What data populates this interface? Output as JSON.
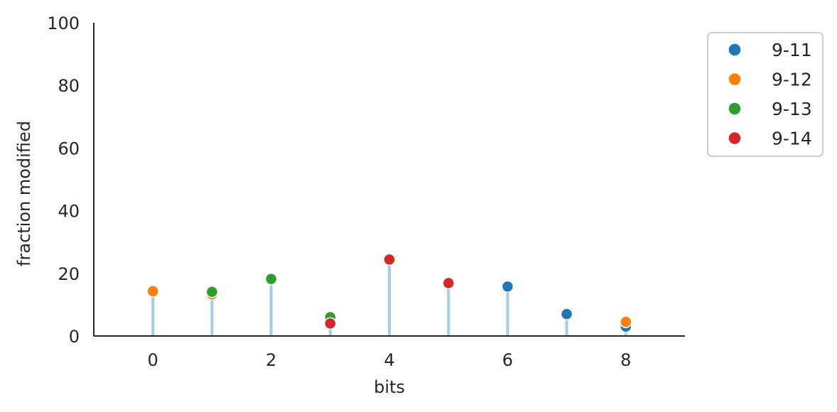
{
  "chart_data": {
    "type": "scatter",
    "title": "",
    "xlabel": "bits",
    "ylabel": "fraction modified",
    "xlim": [
      -1,
      9
    ],
    "ylim": [
      0,
      100
    ],
    "xticks": [
      0,
      2,
      4,
      6,
      8
    ],
    "yticks": [
      0,
      20,
      40,
      60,
      80,
      100
    ],
    "grid": false,
    "legend_position": "outside-top-right",
    "stem_color": "#a6cee3",
    "series": [
      {
        "name": "9-11",
        "color": "#1f77b4",
        "points": [
          [
            6,
            15.8
          ],
          [
            7,
            7.0
          ],
          [
            8,
            3.0
          ]
        ]
      },
      {
        "name": "9-12",
        "color": "#ff7f0e",
        "points": [
          [
            0,
            14.3
          ],
          [
            1,
            13.3
          ],
          [
            8,
            4.5
          ]
        ]
      },
      {
        "name": "9-13",
        "color": "#2ca02c",
        "points": [
          [
            1,
            14.1
          ],
          [
            2,
            18.2
          ],
          [
            3,
            6.0
          ]
        ]
      },
      {
        "name": "9-14",
        "color": "#d62728",
        "points": [
          [
            3,
            4.0
          ],
          [
            4,
            24.4
          ],
          [
            5,
            16.9
          ]
        ]
      }
    ],
    "stems": [
      {
        "x": 0,
        "y": 14.3
      },
      {
        "x": 1,
        "y": 14.1
      },
      {
        "x": 2,
        "y": 18.2
      },
      {
        "x": 3,
        "y": 6.0
      },
      {
        "x": 4,
        "y": 24.4
      },
      {
        "x": 5,
        "y": 16.9
      },
      {
        "x": 6,
        "y": 15.8
      },
      {
        "x": 7,
        "y": 7.0
      },
      {
        "x": 8,
        "y": 4.5
      }
    ]
  }
}
